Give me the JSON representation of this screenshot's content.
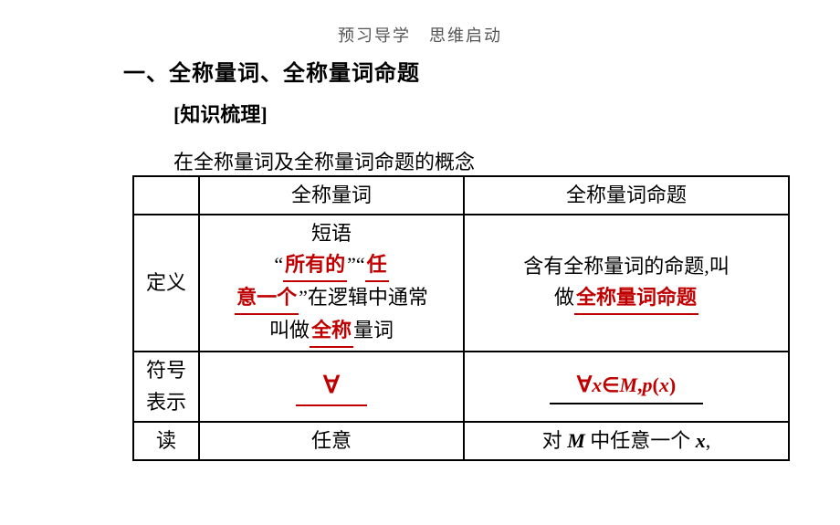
{
  "header": {
    "breadcrumb": "预习导学　思维启动"
  },
  "section": {
    "title": "一、全称量词、全称量词命题",
    "subtitle": "[知识梳理]",
    "intro": "在全称量词及全称量词命题的概念"
  },
  "table": {
    "head": {
      "c1": "",
      "c2": "全称量词",
      "c3": "全称量词命题"
    },
    "rows": {
      "def": {
        "label": "定义",
        "c2": {
          "pre1": "短语",
          "q1": "“",
          "blank1": "所有的",
          "q2": "”“",
          "blank2a": "任",
          "blank2b": "意一个",
          "post1": "”在逻辑中通常",
          "line3a": "叫做",
          "blank3": "全称",
          "line3b": "量词"
        },
        "c3": {
          "line1": "含有全称量词的命题,叫",
          "line2a": "做",
          "blank": "全称量词命题"
        }
      },
      "sym": {
        "label1": "符号",
        "label2": "表示",
        "c2": "∀",
        "c3_forall": "∀",
        "c3_x": "x",
        "c3_in": "∈",
        "c3_M": "M",
        "c3_comma": ",",
        "c3_p": "p",
        "c3_lp": "(",
        "c3_x2": "x",
        "c3_rp": ")"
      },
      "read": {
        "label": "读",
        "c2": "任意",
        "c3a": "对 ",
        "c3M": "M",
        "c3b": " 中任意一个 ",
        "c3x": "x",
        "c3c": ","
      }
    }
  },
  "colors": {
    "red": "#c00000",
    "black": "#000000",
    "grey": "#999999"
  }
}
